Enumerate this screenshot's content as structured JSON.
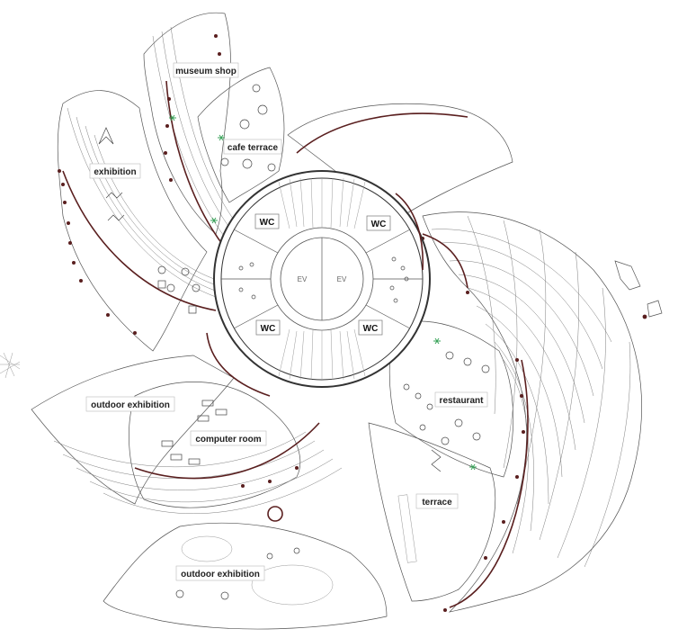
{
  "labels": {
    "museum_shop": "museum shop",
    "cafe_terrace": "cafe terrace",
    "exhibition": "exhibition",
    "outdoor_exhibition_upper": "outdoor exhibition",
    "computer_room": "computer room",
    "outdoor_exhibition_lower": "outdoor exhibition",
    "restaurant": "restaurant",
    "terrace": "terrace"
  },
  "core": {
    "wc_labels": [
      "WC",
      "WC",
      "WC",
      "WC"
    ],
    "ev_labels": [
      "EV",
      "EV"
    ]
  },
  "colors": {
    "structure": "#5a1f1f",
    "trees": "#3aa35a",
    "linework": "#555555"
  }
}
